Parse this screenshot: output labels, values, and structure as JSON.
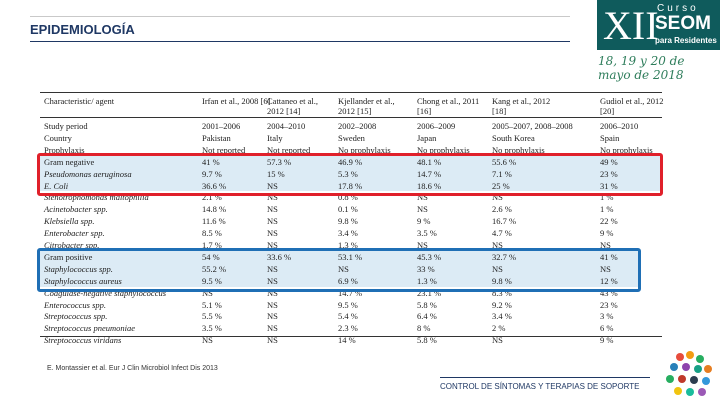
{
  "header": {
    "title": "EPIDEMIOLOGÍA"
  },
  "logo": {
    "edition": "XII",
    "course": "Curso",
    "org": "SEOM",
    "audience": "para Residentes",
    "date": "18, 19 y 20 de mayo de 2018"
  },
  "table": {
    "columns": [
      "Characteristic/ agent",
      "Irfan et al., 2008 [6]",
      "Cattaneo et al., 2012 [14]",
      "Kjellander et al., 2012 [15]",
      "Chong et al., 2011 [16]",
      "Kang et al., 2012 [18]",
      "Gudiol et al., 2012 [20]"
    ],
    "rows": [
      [
        "Study period",
        "2001–2006",
        "2004–2010",
        "2002–2008",
        "2006–2009",
        "2005–2007, 2008–2008",
        "2006–2010"
      ],
      [
        "Country",
        "Pakistan",
        "Italy",
        "Sweden",
        "Japan",
        "South Korea",
        "Spain"
      ],
      [
        "Prophylaxis",
        "Not reported",
        "Not reported",
        "No prophylaxis",
        "No prophylaxis",
        "No prophylaxis",
        "No prophylaxis"
      ],
      [
        "Gram negative",
        "41 %",
        "57.3 %",
        "46.9 %",
        "48.1 %",
        "55.6 %",
        "49 %"
      ],
      [
        "Pseudomonas aeruginosa",
        "9.7 %",
        "15 %",
        "5.3 %",
        "14.7 %",
        "7.1 %",
        "23 %"
      ],
      [
        "E. Coli",
        "36.6 %",
        "NS",
        "17.8 %",
        "18.6 %",
        "25 %",
        "31 %"
      ],
      [
        "Stenotrophomonas maltophilia",
        "2.1 %",
        "NS",
        "0.8 %",
        "NS",
        "NS",
        "1 %"
      ],
      [
        "Acinetobacter spp.",
        "14.8 %",
        "NS",
        "0.1 %",
        "NS",
        "2.6 %",
        "1 %"
      ],
      [
        "Klebsiella spp.",
        "11.6 %",
        "NS",
        "9.8 %",
        "9 %",
        "16.7 %",
        "22 %"
      ],
      [
        "Enterobacter spp.",
        "8.5 %",
        "NS",
        "3.4 %",
        "3.5 %",
        "4.7 %",
        "9 %"
      ],
      [
        "Citrobacter spp.",
        "1.7 %",
        "NS",
        "1.3 %",
        "NS",
        "NS",
        "NS"
      ],
      [
        "Gram positive",
        "54 %",
        "33.6 %",
        "53.1 %",
        "45.3 %",
        "32.7 %",
        "41 %"
      ],
      [
        "Staphylococcus spp.",
        "55.2 %",
        "NS",
        "NS",
        "33 %",
        "NS",
        "NS"
      ],
      [
        "Staphylococcus aureus",
        "9.5 %",
        "NS",
        "6.9 %",
        "1.3 %",
        "9.8 %",
        "12 %"
      ],
      [
        "Coagulase-negative staphylococcus",
        "NS",
        "NS",
        "14.7 %",
        "23.1 %",
        "8.3 %",
        "43 %"
      ],
      [
        "Enterococcus spp.",
        "5.1 %",
        "NS",
        "9.5 %",
        "5.8 %",
        "9.2 %",
        "23 %"
      ],
      [
        "Streptococcus spp.",
        "5.5 %",
        "NS",
        "5.4 %",
        "6.4 %",
        "3.4 %",
        "3 %"
      ],
      [
        "Streptococcus pneumoniae",
        "3.5 %",
        "NS",
        "2.3 %",
        "8 %",
        "2 %",
        "6 %"
      ],
      [
        "Streptococcus viridans",
        "NS",
        "NS",
        "14 %",
        "5.8 %",
        "NS",
        "9 %"
      ]
    ]
  },
  "citation": "E. Montassier et al. Eur J Clin Microbiol Infect Dis 2013",
  "footer": "CONTROL DE SÍNTOMAS Y TERAPIAS DE SOPORTE"
}
